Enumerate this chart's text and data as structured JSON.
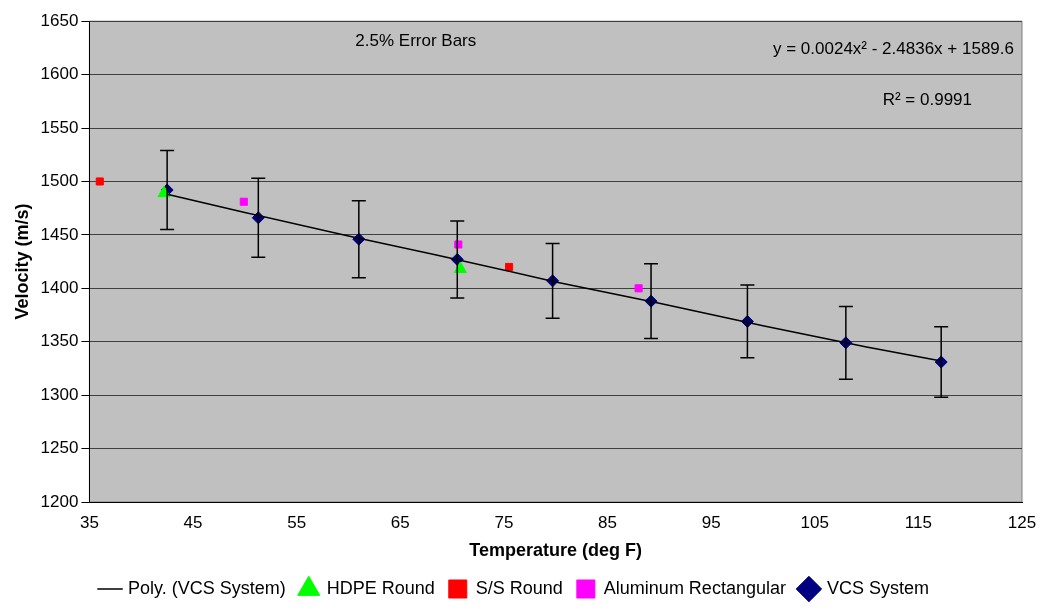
{
  "chart_data": {
    "type": "scatter",
    "xlabel": "Temperature (deg F)",
    "ylabel": "Velocity (m/s)",
    "xlim": [
      35,
      125
    ],
    "xticks": [
      35,
      45,
      55,
      65,
      75,
      85,
      95,
      105,
      115,
      125
    ],
    "ylim": [
      1200,
      1650
    ],
    "yticks": [
      1200,
      1250,
      1300,
      1350,
      1400,
      1450,
      1500,
      1550,
      1600,
      1650
    ],
    "grid": "y",
    "legend": "bottom",
    "annotations": [
      "2.5% Error Bars",
      "y = 0.0024x² - 2.4836x + 1589.6",
      "R² = 0.9991"
    ],
    "series": [
      {
        "name": "VCS System",
        "color": "#000080",
        "marker": "diamond",
        "x": [
          42.5,
          51.3,
          61,
          70.5,
          79.7,
          89.2,
          98.5,
          108,
          117.2
        ],
        "values": [
          1492,
          1466,
          1446,
          1427,
          1407,
          1388,
          1369,
          1349,
          1331
        ],
        "errors": [
          37,
          37,
          36,
          36,
          35,
          35,
          34,
          34,
          33
        ]
      },
      {
        "name": "Aluminum Rectangular",
        "color": "#ff00ff",
        "marker": "square",
        "x": [
          49.9,
          70.6,
          88
        ],
        "values": [
          1481,
          1441,
          1400
        ]
      },
      {
        "name": "S/S Round",
        "color": "#ff0000",
        "marker": "square",
        "x": [
          36,
          75.5
        ],
        "values": [
          1500,
          1420
        ]
      },
      {
        "name": "HDPE Round",
        "color": "#00ff00",
        "marker": "triangle",
        "x": [
          42.2,
          70.8
        ],
        "values": [
          1489,
          1418
        ]
      },
      {
        "name": "Poly. (VCS System)",
        "type": "line",
        "color": "#000000",
        "marker": "none",
        "x": [
          42.5,
          50,
          60,
          70,
          80,
          90,
          100,
          110,
          117.2
        ],
        "values": [
          1488,
          1471,
          1449,
          1428,
          1406,
          1386,
          1365,
          1345,
          1332
        ]
      }
    ]
  }
}
